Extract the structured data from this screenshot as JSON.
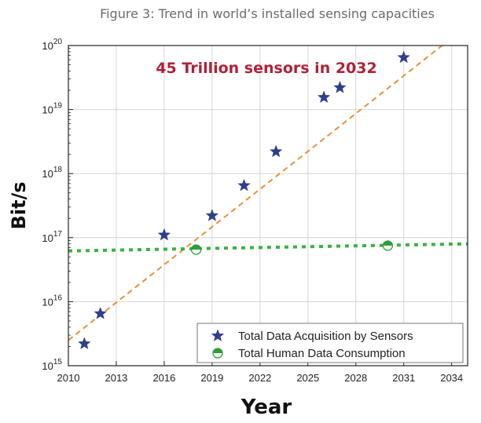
{
  "figure_title": "Figure 3: Trend in world’s installed sensing capacities",
  "chart_data": {
    "type": "scatter",
    "title": "",
    "xlabel": "Year",
    "ylabel": "Bit/s",
    "xlim": [
      2010,
      2035
    ],
    "ylim": [
      1000000000000000.0,
      1e+20
    ],
    "y_scale": "log",
    "grid": true,
    "legend_position": "bottom-right",
    "x_ticks": [
      "2010",
      "2013",
      "2016",
      "2019",
      "2022",
      "2025",
      "2028",
      "2031",
      "2034"
    ],
    "y_ticks": [
      {
        "base": "10",
        "exp": "15"
      },
      {
        "base": "10",
        "exp": "16"
      },
      {
        "base": "10",
        "exp": "17"
      },
      {
        "base": "10",
        "exp": "18"
      },
      {
        "base": "10",
        "exp": "19"
      },
      {
        "base": "10",
        "exp": "20"
      }
    ],
    "annotation": {
      "text": "45 Trillion sensors in 2032",
      "color": "#b0213a"
    },
    "series": [
      {
        "name": "Total Data Acquisition by Sensors",
        "marker": "star",
        "color": "#2e3f8f",
        "points": [
          {
            "x": 2011,
            "y": 2200000000000000.0
          },
          {
            "x": 2012,
            "y": 6500000000000000.0
          },
          {
            "x": 2016,
            "y": 1.1e+17
          },
          {
            "x": 2019,
            "y": 2.2e+17
          },
          {
            "x": 2021,
            "y": 6.5e+17
          },
          {
            "x": 2023,
            "y": 2.2e+18
          },
          {
            "x": 2026,
            "y": 1.55e+19
          },
          {
            "x": 2027,
            "y": 2.2e+19
          },
          {
            "x": 2031,
            "y": 6.5e+19
          }
        ]
      },
      {
        "name": "Total Human Data Consumption",
        "marker": "half-circle",
        "color": "#2e9e3a",
        "points": [
          {
            "x": 2018,
            "y": 6.5e+16
          },
          {
            "x": 2030,
            "y": 7.5e+16
          }
        ]
      }
    ],
    "trend_lines": [
      {
        "style": "dashed",
        "color": "#e8903a",
        "from": {
          "x": 2010,
          "y": 2500000000000000.0
        },
        "to": {
          "x": 2034.7,
          "y": 1.8e+20
        }
      },
      {
        "style": "dotted",
        "color": "#3cb043",
        "from": {
          "x": 2010,
          "y": 6.2e+16
        },
        "to": {
          "x": 2035,
          "y": 8e+16
        }
      }
    ]
  }
}
